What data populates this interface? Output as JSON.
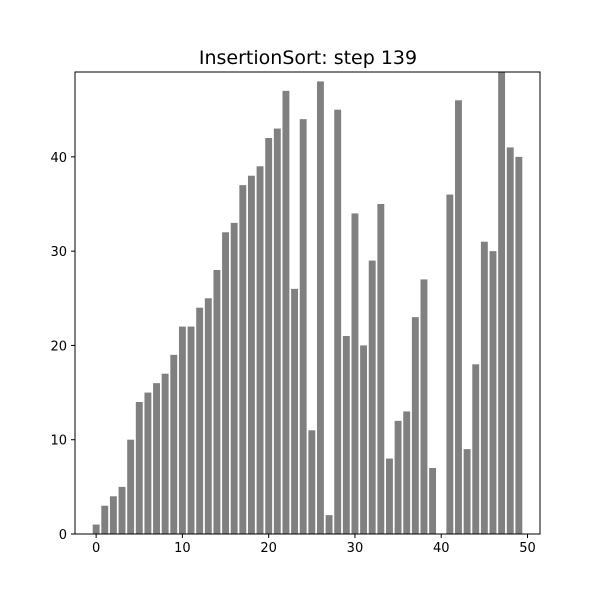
{
  "chart_data": {
    "type": "bar",
    "title": "InsertionSort: step 139",
    "xlabel": "",
    "ylabel": "",
    "x": [
      0,
      1,
      2,
      3,
      4,
      5,
      6,
      7,
      8,
      9,
      10,
      11,
      12,
      13,
      14,
      15,
      16,
      17,
      18,
      19,
      20,
      21,
      22,
      23,
      24,
      25,
      26,
      27,
      28,
      29,
      30,
      31,
      32,
      33,
      34,
      35,
      36,
      37,
      38,
      39,
      40,
      41,
      42,
      43,
      44,
      45,
      46,
      47,
      48,
      49
    ],
    "values": [
      1,
      3,
      4,
      5,
      10,
      14,
      15,
      16,
      17,
      19,
      22,
      22,
      24,
      25,
      28,
      32,
      33,
      37,
      38,
      39,
      42,
      43,
      47,
      26,
      44,
      11,
      48,
      2,
      45,
      21,
      34,
      20,
      29,
      35,
      8,
      12,
      13,
      23,
      27,
      7,
      0,
      36,
      46,
      9,
      18,
      31,
      30,
      49,
      41,
      40
    ],
    "bar_color": "#808080",
    "xlim": [
      -2.45,
      51.45
    ],
    "ylim": [
      0,
      49
    ],
    "xticks": [
      0,
      10,
      20,
      30,
      40,
      50
    ],
    "yticks": [
      0,
      10,
      20,
      30,
      40
    ],
    "grid": false,
    "legend": "none"
  }
}
